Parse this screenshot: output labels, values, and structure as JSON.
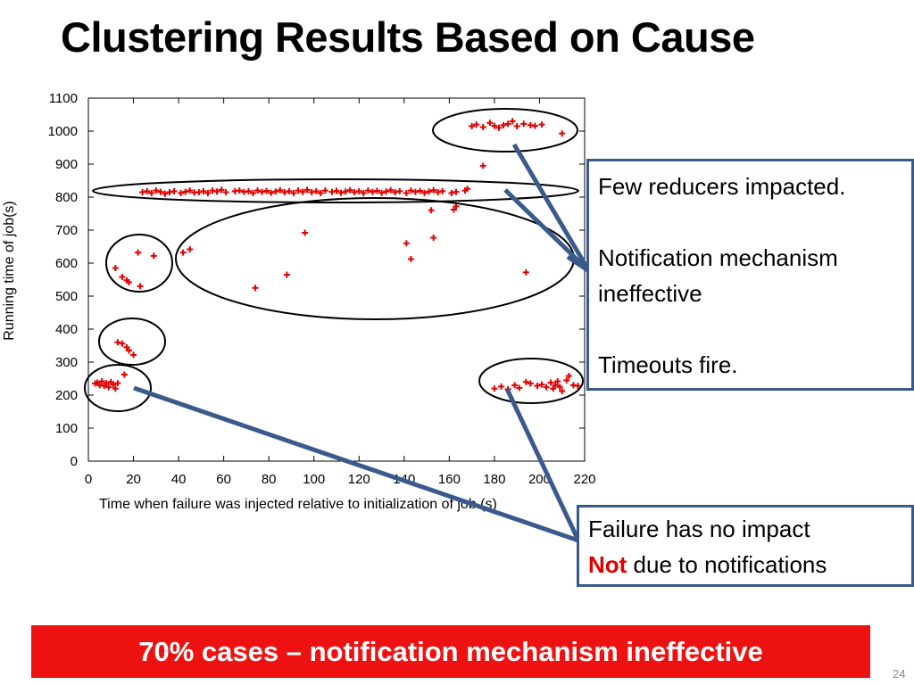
{
  "slide": {
    "title": "Clustering Results Based on Cause",
    "page_number": "24",
    "banner": "70% cases – notification mechanism ineffective"
  },
  "callouts": {
    "top": {
      "line1": "Few reducers impacted.",
      "line2": "Notification mechanism",
      "line3": "ineffective",
      "line4": "Timeouts fire."
    },
    "bottom": {
      "line1": "Failure has no impact",
      "line2_red": "Not",
      "line2_rest": " due to notifications"
    }
  },
  "colors": {
    "accent_red": "#ee1111",
    "callout_border": "#3a5a8c",
    "point_red": "#e00000"
  },
  "chart_data": {
    "type": "scatter",
    "xlabel": "Time when failure was injected relative to initialization of job (s)",
    "ylabel": "Running time of job(s)",
    "xlim": [
      0,
      220
    ],
    "ylim": [
      0,
      1100
    ],
    "xticks": [
      0,
      20,
      40,
      60,
      80,
      100,
      120,
      140,
      160,
      180,
      200,
      220
    ],
    "yticks": [
      0,
      100,
      200,
      300,
      400,
      500,
      600,
      700,
      800,
      900,
      1000,
      1100
    ],
    "grid": false,
    "points": [
      [
        3,
        235
      ],
      [
        4,
        238
      ],
      [
        5,
        230
      ],
      [
        6,
        242
      ],
      [
        7,
        228
      ],
      [
        8,
        236
      ],
      [
        9,
        224
      ],
      [
        10,
        240
      ],
      [
        11,
        232
      ],
      [
        12,
        220
      ],
      [
        13,
        236
      ],
      [
        16,
        262
      ],
      [
        13,
        360
      ],
      [
        15,
        356
      ],
      [
        17,
        345
      ],
      [
        18,
        335
      ],
      [
        20,
        322
      ],
      [
        12,
        585
      ],
      [
        15,
        558
      ],
      [
        17,
        548
      ],
      [
        18,
        542
      ],
      [
        22,
        632
      ],
      [
        23,
        530
      ],
      [
        29,
        622
      ],
      [
        42,
        632
      ],
      [
        45,
        642
      ],
      [
        74,
        525
      ],
      [
        88,
        565
      ],
      [
        96,
        692
      ],
      [
        141,
        660
      ],
      [
        143,
        612
      ],
      [
        152,
        760
      ],
      [
        153,
        677
      ],
      [
        162,
        762
      ],
      [
        163,
        772
      ],
      [
        194,
        572
      ],
      [
        175,
        895
      ],
      [
        170,
        1015
      ],
      [
        172,
        1020
      ],
      [
        175,
        1012
      ],
      [
        178,
        1025
      ],
      [
        180,
        1016
      ],
      [
        182,
        1010
      ],
      [
        184,
        1018
      ],
      [
        186,
        1022
      ],
      [
        188,
        1030
      ],
      [
        190,
        1015
      ],
      [
        193,
        1022
      ],
      [
        196,
        1018
      ],
      [
        198,
        1016
      ],
      [
        201,
        1020
      ],
      [
        210,
        993
      ],
      [
        24,
        815
      ],
      [
        26,
        818
      ],
      [
        28,
        812
      ],
      [
        30,
        820
      ],
      [
        32,
        816
      ],
      [
        34,
        810
      ],
      [
        36,
        815
      ],
      [
        38,
        818
      ],
      [
        41,
        812
      ],
      [
        43,
        816
      ],
      [
        45,
        820
      ],
      [
        47,
        814
      ],
      [
        49,
        815
      ],
      [
        51,
        818
      ],
      [
        53,
        812
      ],
      [
        55,
        820
      ],
      [
        57,
        817
      ],
      [
        59,
        822
      ],
      [
        61,
        815
      ],
      [
        65,
        818
      ],
      [
        67,
        820
      ],
      [
        69,
        816
      ],
      [
        71,
        818
      ],
      [
        73,
        812
      ],
      [
        75,
        820
      ],
      [
        77,
        816
      ],
      [
        79,
        819
      ],
      [
        81,
        813
      ],
      [
        83,
        817
      ],
      [
        85,
        821
      ],
      [
        87,
        815
      ],
      [
        89,
        818
      ],
      [
        91,
        812
      ],
      [
        93,
        820
      ],
      [
        95,
        816
      ],
      [
        97,
        822
      ],
      [
        99,
        815
      ],
      [
        101,
        818
      ],
      [
        103,
        812
      ],
      [
        105,
        820
      ],
      [
        108,
        816
      ],
      [
        110,
        819
      ],
      [
        112,
        813
      ],
      [
        114,
        817
      ],
      [
        116,
        821
      ],
      [
        118,
        815
      ],
      [
        120,
        818
      ],
      [
        122,
        812
      ],
      [
        124,
        820
      ],
      [
        126,
        816
      ],
      [
        128,
        819
      ],
      [
        130,
        813
      ],
      [
        132,
        817
      ],
      [
        134,
        821
      ],
      [
        136,
        815
      ],
      [
        138,
        818
      ],
      [
        141,
        812
      ],
      [
        143,
        820
      ],
      [
        145,
        816
      ],
      [
        147,
        819
      ],
      [
        149,
        813
      ],
      [
        151,
        817
      ],
      [
        153,
        821
      ],
      [
        155,
        815
      ],
      [
        157,
        818
      ],
      [
        161,
        812
      ],
      [
        163,
        816
      ],
      [
        167,
        820
      ],
      [
        168,
        825
      ],
      [
        180,
        220
      ],
      [
        183,
        226
      ],
      [
        186,
        218
      ],
      [
        189,
        230
      ],
      [
        191,
        222
      ],
      [
        194,
        240
      ],
      [
        196,
        235
      ],
      [
        199,
        228
      ],
      [
        201,
        232
      ],
      [
        203,
        224
      ],
      [
        205,
        238
      ],
      [
        206,
        220
      ],
      [
        207,
        230
      ],
      [
        208,
        242
      ],
      [
        209,
        225
      ],
      [
        210,
        212
      ],
      [
        212,
        245
      ],
      [
        213,
        258
      ],
      [
        215,
        230
      ],
      [
        217,
        228
      ]
    ]
  }
}
